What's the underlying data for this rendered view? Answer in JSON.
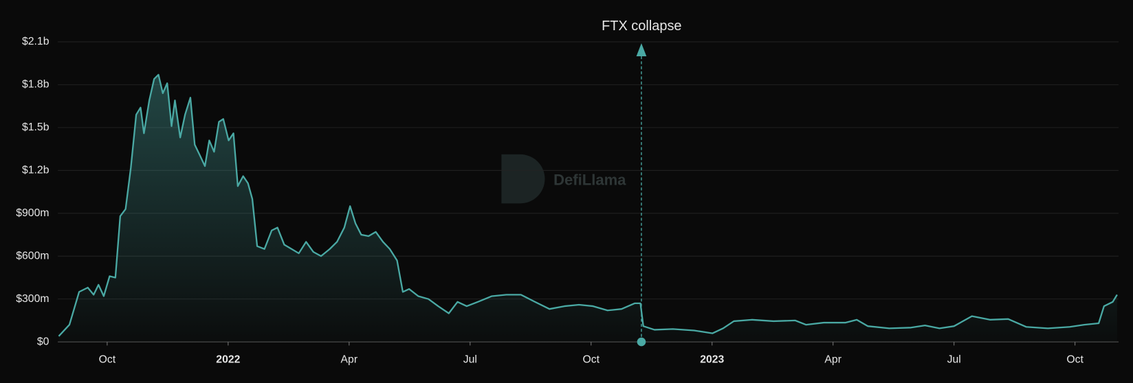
{
  "chart_data": {
    "type": "area",
    "color": "#4aa9a4",
    "grid": true,
    "watermark": "DefiLlama",
    "annotation": {
      "text": "FTX collapse",
      "x": 2022.854
    },
    "xlim": [
      2021.648,
      2023.84
    ],
    "xticks": [
      {
        "value": 2021.75,
        "label": "Oct"
      },
      {
        "value": 2022,
        "label": "2022"
      },
      {
        "value": 2022.25,
        "label": "Apr"
      },
      {
        "value": 2022.5,
        "label": "Jul"
      },
      {
        "value": 2022.75,
        "label": "Oct"
      },
      {
        "value": 2023,
        "label": "2023"
      },
      {
        "value": 2023.25,
        "label": "Apr"
      },
      {
        "value": 2023.5,
        "label": "Jul"
      },
      {
        "value": 2023.75,
        "label": "Oct"
      }
    ],
    "ylim": [
      0,
      2100000000.0
    ],
    "yticks": [
      {
        "value": 0,
        "label": "$0"
      },
      {
        "value": 300000000.0,
        "label": "$300m"
      },
      {
        "value": 600000000.0,
        "label": "$600m"
      },
      {
        "value": 900000000.0,
        "label": "$900m"
      },
      {
        "value": 1200000000.0,
        "label": "$1.2b"
      },
      {
        "value": 1500000000.0,
        "label": "$1.5b"
      },
      {
        "value": 1800000000.0,
        "label": "$1.8b"
      },
      {
        "value": 2100000000.0,
        "label": "$2.1b"
      }
    ],
    "x": [
      2021.65,
      2021.672,
      2021.692,
      2021.71,
      2021.722,
      2021.732,
      2021.743,
      2021.755,
      2021.767,
      2021.777,
      2021.788,
      2021.799,
      2021.81,
      2021.819,
      2021.826,
      2021.837,
      2021.847,
      2021.856,
      2021.865,
      2021.874,
      2021.883,
      2021.89,
      2021.901,
      2021.911,
      2021.922,
      2021.931,
      2021.941,
      2021.952,
      2021.961,
      2021.971,
      2021.981,
      2021.99,
      2022.001,
      2022.011,
      2022.02,
      2022.031,
      2022.041,
      2022.05,
      2022.06,
      2022.075,
      2022.09,
      2022.102,
      2022.116,
      2022.131,
      2022.146,
      2022.161,
      2022.176,
      2022.192,
      2022.21,
      2022.225,
      2022.24,
      2022.252,
      2022.263,
      2022.275,
      2022.29,
      2022.305,
      2022.32,
      2022.334,
      2022.349,
      2022.361,
      2022.374,
      2022.393,
      2022.414,
      2022.434,
      2022.456,
      2022.474,
      2022.493,
      2022.516,
      2022.545,
      2022.575,
      2022.605,
      2022.634,
      2022.664,
      2022.695,
      2022.725,
      2022.754,
      2022.784,
      2022.813,
      2022.84,
      2022.852,
      2022.858,
      2022.881,
      2022.919,
      2022.963,
      2023.001,
      2023.023,
      2023.045,
      2023.082,
      2023.127,
      2023.172,
      2023.194,
      2023.231,
      2023.276,
      2023.299,
      2023.322,
      2023.366,
      2023.411,
      2023.44,
      2023.47,
      2023.5,
      2023.537,
      2023.575,
      2023.612,
      2023.649,
      2023.694,
      2023.739,
      2023.769,
      2023.799,
      2023.81,
      2023.828,
      2023.837
    ],
    "values": [
      40000000.0,
      120000000.0,
      350000000.0,
      380000000.0,
      330000000.0,
      400000000.0,
      320000000.0,
      460000000.0,
      450000000.0,
      880000000.0,
      930000000.0,
      1220000000.0,
      1590000000.0,
      1640000000.0,
      1460000000.0,
      1690000000.0,
      1840000000.0,
      1870000000.0,
      1740000000.0,
      1810000000.0,
      1510000000.0,
      1690000000.0,
      1430000000.0,
      1590000000.0,
      1710000000.0,
      1380000000.0,
      1310000000.0,
      1230000000.0,
      1410000000.0,
      1330000000.0,
      1540000000.0,
      1560000000.0,
      1410000000.0,
      1460000000.0,
      1090000000.0,
      1160000000.0,
      1110000000.0,
      1000000000.0,
      670000000.0,
      650000000.0,
      780000000.0,
      800000000.0,
      680000000.0,
      650000000.0,
      620000000.0,
      700000000.0,
      630000000.0,
      600000000.0,
      650000000.0,
      700000000.0,
      800000000.0,
      950000000.0,
      830000000.0,
      750000000.0,
      740000000.0,
      770000000.0,
      700000000.0,
      650000000.0,
      570000000.0,
      350000000.0,
      370000000.0,
      320000000.0,
      300000000.0,
      250000000.0,
      200000000.0,
      280000000.0,
      250000000.0,
      280000000.0,
      320000000.0,
      330000000.0,
      330000000.0,
      280000000.0,
      230000000.0,
      250000000.0,
      260000000.0,
      250000000.0,
      220000000.0,
      230000000.0,
      270000000.0,
      270000000.0,
      110000000.0,
      85000000.0,
      90000000.0,
      80000000.0,
      60000000.0,
      95000000.0,
      145000000.0,
      155000000.0,
      145000000.0,
      150000000.0,
      120000000.0,
      135000000.0,
      135000000.0,
      155000000.0,
      110000000.0,
      95000000.0,
      100000000.0,
      115000000.0,
      95000000.0,
      110000000.0,
      180000000.0,
      155000000.0,
      160000000.0,
      105000000.0,
      95000000.0,
      105000000.0,
      120000000.0,
      130000000.0,
      250000000.0,
      280000000.0,
      330000000.0
    ]
  }
}
